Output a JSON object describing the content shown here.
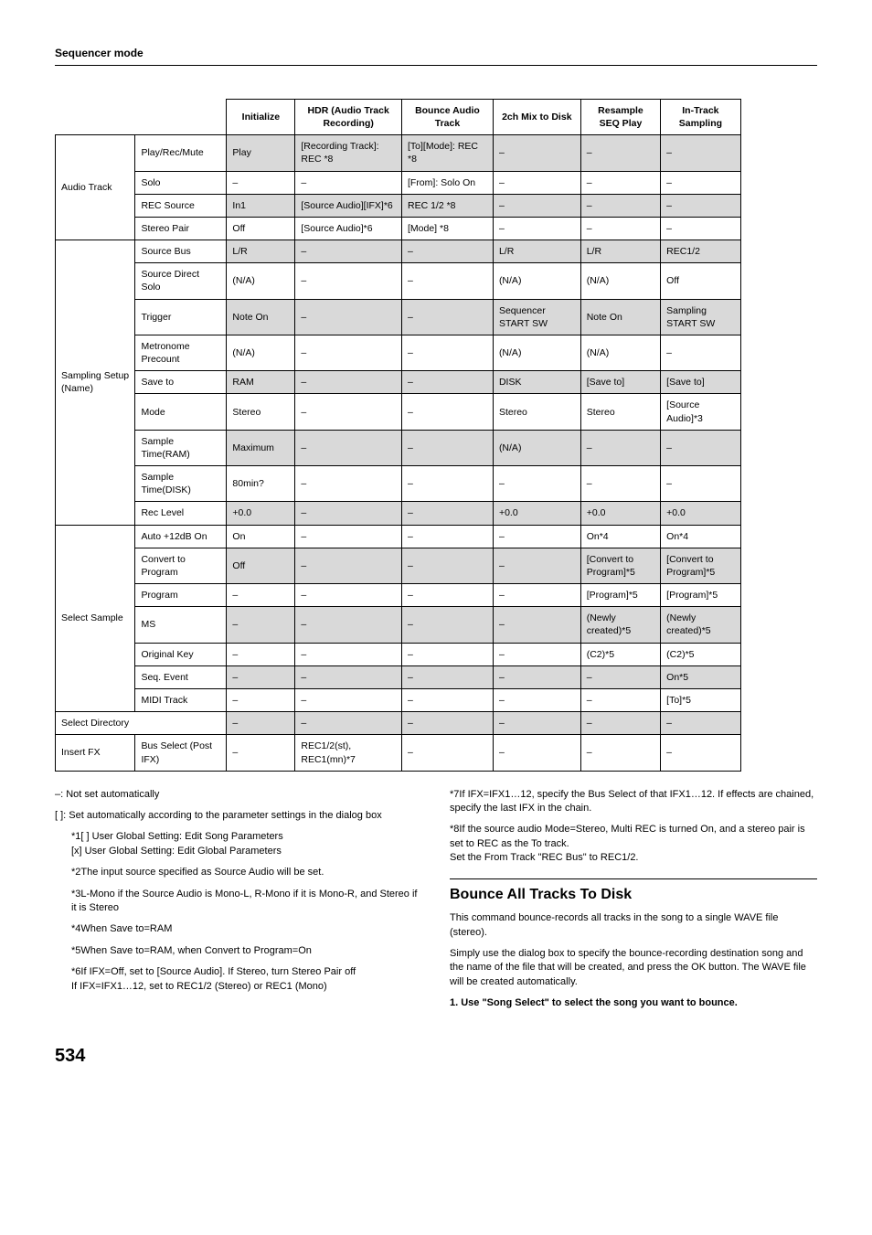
{
  "header": {
    "title": "Sequencer mode"
  },
  "table": {
    "columns": [
      "Initialize",
      "HDR (Audio Track Recording)",
      "Bounce Audio Track",
      "2ch Mix to Disk",
      "Resample SEQ Play",
      "In-Track Sampling"
    ],
    "col_widths_percent": [
      10.5,
      12,
      9,
      14,
      12,
      11.5,
      10.5,
      10.5,
      10
    ],
    "groups": [
      {
        "name": "Audio Track",
        "rows": [
          {
            "label": "Play/Rec/Mute",
            "cells": [
              {
                "v": "Play",
                "d": true
              },
              {
                "v": "[Recording Track]: REC *8",
                "d": true
              },
              {
                "v": "[To][Mode]: REC *8",
                "d": true
              },
              {
                "v": "–",
                "d": true
              },
              {
                "v": "–",
                "d": true
              },
              {
                "v": "–",
                "d": true
              }
            ]
          },
          {
            "label": "Solo",
            "cells": [
              {
                "v": "–"
              },
              {
                "v": "–"
              },
              {
                "v": "[From]: Solo On"
              },
              {
                "v": "–"
              },
              {
                "v": "–"
              },
              {
                "v": "–"
              }
            ]
          },
          {
            "label": "REC Source",
            "cells": [
              {
                "v": "In1",
                "d": true
              },
              {
                "v": "[Source Audio][IFX]*6",
                "d": true
              },
              {
                "v": "REC 1/2 *8",
                "d": true
              },
              {
                "v": "–",
                "d": true
              },
              {
                "v": "–",
                "d": true
              },
              {
                "v": "–",
                "d": true
              }
            ]
          },
          {
            "label": "Stereo Pair",
            "cells": [
              {
                "v": "Off"
              },
              {
                "v": "[Source Audio]*6"
              },
              {
                "v": "[Mode] *8"
              },
              {
                "v": "–"
              },
              {
                "v": "–"
              },
              {
                "v": "–"
              }
            ]
          }
        ]
      },
      {
        "name": "Sampling Setup (Name)",
        "rows": [
          {
            "label": "Source Bus",
            "cells": [
              {
                "v": "L/R",
                "d": true
              },
              {
                "v": "–",
                "d": true
              },
              {
                "v": "–",
                "d": true
              },
              {
                "v": "L/R",
                "d": true
              },
              {
                "v": "L/R",
                "d": true
              },
              {
                "v": "REC1/2",
                "d": true
              }
            ]
          },
          {
            "label": "Source Direct Solo",
            "cells": [
              {
                "v": "(N/A)"
              },
              {
                "v": "–"
              },
              {
                "v": "–"
              },
              {
                "v": "(N/A)"
              },
              {
                "v": "(N/A)"
              },
              {
                "v": "Off"
              }
            ]
          },
          {
            "label": "Trigger",
            "cells": [
              {
                "v": "Note On",
                "d": true
              },
              {
                "v": "–",
                "d": true
              },
              {
                "v": "–",
                "d": true
              },
              {
                "v": "Sequencer START SW",
                "d": true
              },
              {
                "v": "Note On",
                "d": true
              },
              {
                "v": "Sampling START SW",
                "d": true
              }
            ]
          },
          {
            "label": "Metronome Precount",
            "cells": [
              {
                "v": "(N/A)"
              },
              {
                "v": "–"
              },
              {
                "v": "–"
              },
              {
                "v": "(N/A)"
              },
              {
                "v": "(N/A)"
              },
              {
                "v": "–"
              }
            ]
          },
          {
            "label": "Save to",
            "cells": [
              {
                "v": "RAM",
                "d": true
              },
              {
                "v": "–",
                "d": true
              },
              {
                "v": "–",
                "d": true
              },
              {
                "v": "DISK",
                "d": true
              },
              {
                "v": "[Save to]",
                "d": true
              },
              {
                "v": "[Save to]",
                "d": true
              }
            ]
          },
          {
            "label": "Mode",
            "cells": [
              {
                "v": "Stereo"
              },
              {
                "v": "–"
              },
              {
                "v": "–"
              },
              {
                "v": "Stereo"
              },
              {
                "v": "Stereo"
              },
              {
                "v": "[Source Audio]*3"
              }
            ]
          },
          {
            "label": "Sample Time(RAM)",
            "cells": [
              {
                "v": "Maximum",
                "d": true
              },
              {
                "v": "–",
                "d": true
              },
              {
                "v": "–",
                "d": true
              },
              {
                "v": "(N/A)",
                "d": true
              },
              {
                "v": "–",
                "d": true
              },
              {
                "v": "–",
                "d": true
              }
            ]
          },
          {
            "label": "Sample Time(DISK)",
            "cells": [
              {
                "v": "80min?"
              },
              {
                "v": "–"
              },
              {
                "v": "–"
              },
              {
                "v": "–"
              },
              {
                "v": "–"
              },
              {
                "v": "–"
              }
            ]
          },
          {
            "label": "Rec Level",
            "cells": [
              {
                "v": "+0.0",
                "d": true
              },
              {
                "v": "–",
                "d": true
              },
              {
                "v": "–",
                "d": true
              },
              {
                "v": "+0.0",
                "d": true
              },
              {
                "v": "+0.0",
                "d": true
              },
              {
                "v": "+0.0",
                "d": true
              }
            ]
          }
        ]
      },
      {
        "name": "Select Sample",
        "rows": [
          {
            "label": "Auto +12dB On",
            "cells": [
              {
                "v": "On"
              },
              {
                "v": "–"
              },
              {
                "v": "–"
              },
              {
                "v": "–"
              },
              {
                "v": "On*4"
              },
              {
                "v": "On*4"
              }
            ]
          },
          {
            "label": "Convert to Program",
            "cells": [
              {
                "v": "Off",
                "d": true
              },
              {
                "v": "–",
                "d": true
              },
              {
                "v": "–",
                "d": true
              },
              {
                "v": "–",
                "d": true
              },
              {
                "v": "[Convert to Program]*5",
                "d": true
              },
              {
                "v": "[Convert to Program]*5",
                "d": true
              }
            ]
          },
          {
            "label": "Program",
            "cells": [
              {
                "v": "–"
              },
              {
                "v": "–"
              },
              {
                "v": "–"
              },
              {
                "v": "–"
              },
              {
                "v": "[Program]*5"
              },
              {
                "v": "[Program]*5"
              }
            ]
          },
          {
            "label": "MS",
            "cells": [
              {
                "v": "–",
                "d": true
              },
              {
                "v": "–",
                "d": true
              },
              {
                "v": "–",
                "d": true
              },
              {
                "v": "–",
                "d": true
              },
              {
                "v": "(Newly created)*5",
                "d": true
              },
              {
                "v": "(Newly created)*5",
                "d": true
              }
            ]
          },
          {
            "label": "Original Key",
            "cells": [
              {
                "v": "–"
              },
              {
                "v": "–"
              },
              {
                "v": "–"
              },
              {
                "v": "–"
              },
              {
                "v": "(C2)*5"
              },
              {
                "v": "(C2)*5"
              }
            ]
          },
          {
            "label": "Seq. Event",
            "cells": [
              {
                "v": "–",
                "d": true
              },
              {
                "v": "–",
                "d": true
              },
              {
                "v": "–",
                "d": true
              },
              {
                "v": "–",
                "d": true
              },
              {
                "v": "–",
                "d": true
              },
              {
                "v": "On*5",
                "d": true
              }
            ]
          },
          {
            "label": "MIDI Track",
            "cells": [
              {
                "v": "–"
              },
              {
                "v": "–"
              },
              {
                "v": "–"
              },
              {
                "v": "–"
              },
              {
                "v": "–"
              },
              {
                "v": "[To]*5"
              }
            ]
          }
        ]
      },
      {
        "name": "Select Directory",
        "single": true,
        "rows": [
          {
            "label": "",
            "cells": [
              {
                "v": "–",
                "d": true
              },
              {
                "v": "–",
                "d": true
              },
              {
                "v": "–",
                "d": true
              },
              {
                "v": "–",
                "d": true
              },
              {
                "v": "–",
                "d": true
              },
              {
                "v": "–",
                "d": true
              }
            ]
          }
        ]
      },
      {
        "name": "Insert FX",
        "single": true,
        "rows": [
          {
            "label": "Bus Select (Post IFX)",
            "cells": [
              {
                "v": "–"
              },
              {
                "v": "REC1/2(st), REC1(mn)*7"
              },
              {
                "v": "–"
              },
              {
                "v": "–"
              },
              {
                "v": "–"
              },
              {
                "v": "–"
              }
            ]
          }
        ]
      }
    ]
  },
  "notes": {
    "left": [
      "–: Not set automatically",
      "[  ]: Set automatically according to the parameter settings in the dialog box"
    ],
    "left_indent": [
      "*1[ ] User Global Setting: Edit Song Parameters\n[x] User Global Setting: Edit Global Parameters",
      "*2The input source specified as Source Audio will be set.",
      "*3L-Mono if the Source Audio is Mono-L, R-Mono if it is Mono-R, and Stereo if it is Stereo",
      "*4When Save to=RAM",
      "*5When Save to=RAM, when Convert to Program=On",
      "*6If IFX=Off, set to [Source Audio]. If Stereo, turn Stereo Pair off\nIf IFX=IFX1…12, set to REC1/2 (Stereo) or REC1 (Mono)"
    ],
    "right_top": [
      "*7If IFX=IFX1…12, specify the Bus Select of that IFX1…12. If effects are chained, specify the last IFX in the chain.",
      "*8If the source audio Mode=Stereo, Multi REC is turned On, and a stereo pair is set to REC as the To track.\nSet the From Track \"REC Bus\" to REC1/2."
    ],
    "section_title": "Bounce All Tracks To Disk",
    "section_body": [
      "This command bounce-records all tracks in the song to a single WAVE file (stereo).",
      "Simply use the dialog box to specify the bounce-recording destination song and the name of the file that will be created, and press the OK button. The WAVE file will be created automatically."
    ],
    "step": "1.  Use \"Song Select\" to select the song you want to bounce."
  },
  "page_number": "534"
}
